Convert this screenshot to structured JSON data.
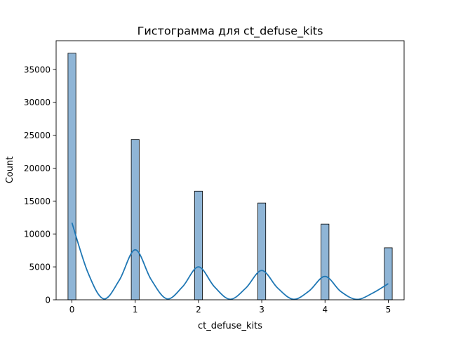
{
  "chart_data": {
    "type": "bar",
    "title": "Гистограмма для ct_defuse_kits",
    "xlabel": "ct_defuse_kits",
    "ylabel": "Count",
    "xlim": [
      -0.25,
      5.25
    ],
    "ylim": [
      0,
      39350
    ],
    "x_ticks": [
      0,
      1,
      2,
      3,
      4,
      5
    ],
    "y_ticks": [
      0,
      5000,
      10000,
      15000,
      20000,
      25000,
      30000,
      35000
    ],
    "grid": false,
    "legend": "none",
    "categories": [
      0,
      1,
      2,
      3,
      4,
      5
    ],
    "values": [
      37450,
      24350,
      16500,
      14700,
      11500,
      7900
    ],
    "bin_width": 0.125,
    "bar_color": "#8fb5d6",
    "bar_edge_color": "#000000",
    "kde": {
      "x": [
        0,
        0.25,
        0.5,
        0.75,
        1,
        1.25,
        1.5,
        1.75,
        2,
        2.25,
        2.5,
        2.75,
        3,
        3.25,
        3.5,
        3.75,
        4,
        4.25,
        4.5,
        4.75,
        5
      ],
      "values": [
        11700,
        4200,
        150,
        3000,
        7600,
        3100,
        150,
        2000,
        5000,
        2000,
        80,
        1800,
        4450,
        1800,
        80,
        1350,
        3550,
        1250,
        60,
        1000,
        2450
      ],
      "color": "#1f77b4"
    }
  }
}
